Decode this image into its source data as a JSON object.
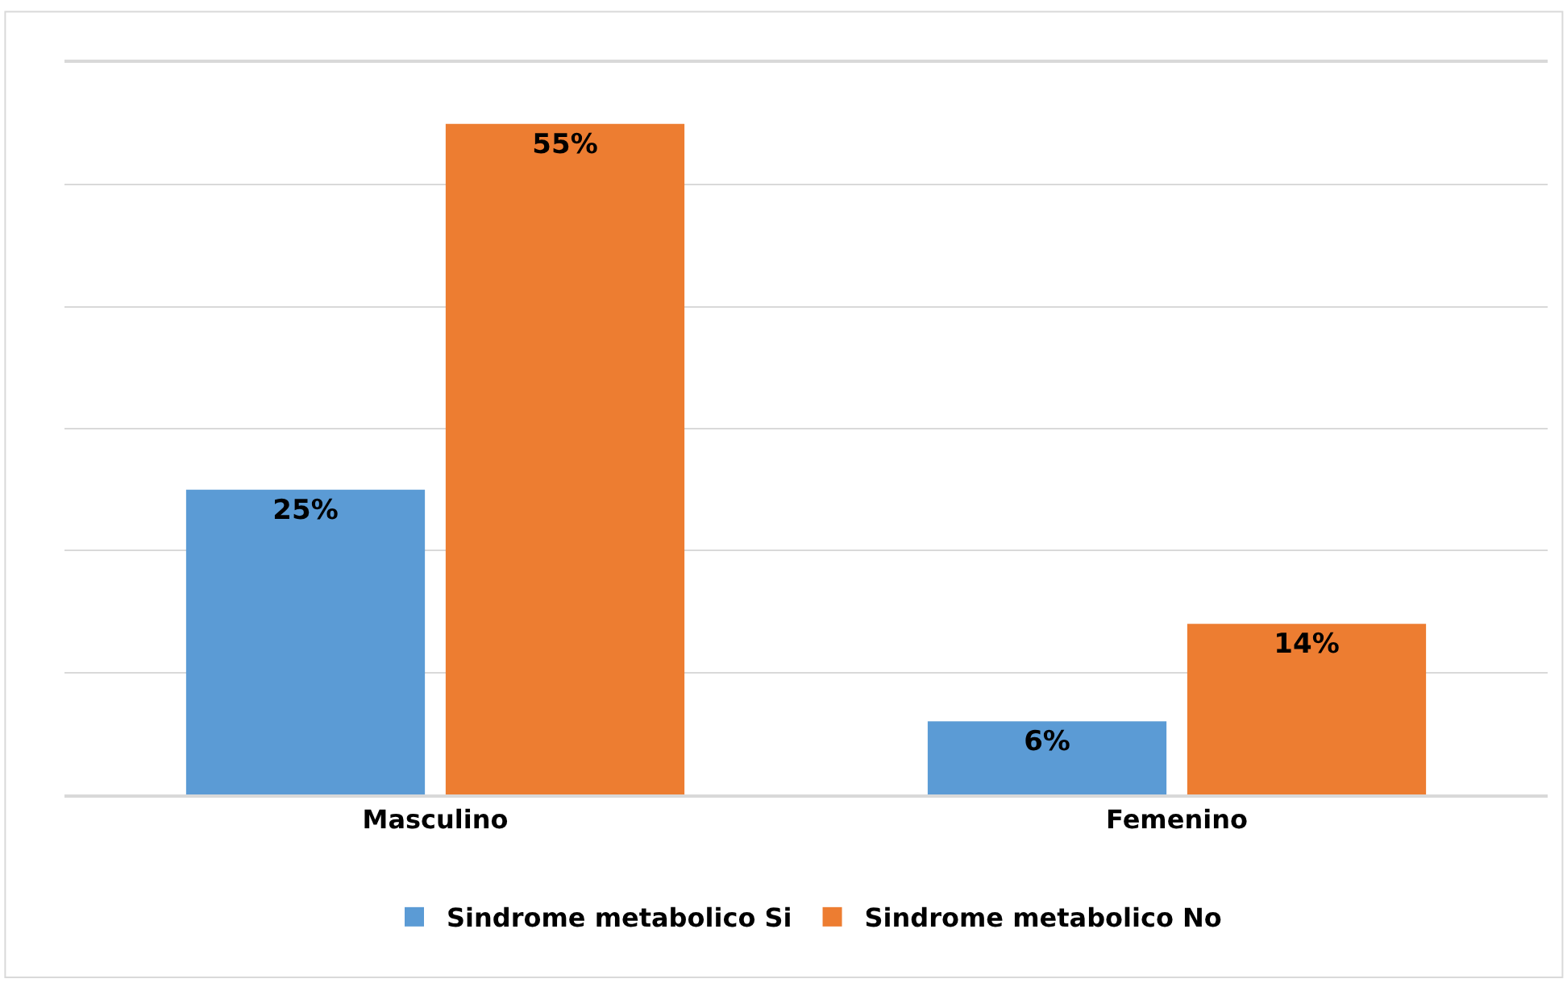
{
  "chart_data": {
    "type": "bar",
    "categories": [
      "Masculino",
      "Femenino"
    ],
    "series": [
      {
        "name": "Sindrome metabolico Si",
        "color": "#5b9bd5",
        "values": [
          25,
          6
        ],
        "value_labels": [
          "25%",
          "6%"
        ]
      },
      {
        "name": "Sindrome metabolico No",
        "color": "#ed7d31",
        "values": [
          55,
          14
        ],
        "value_labels": [
          "55%",
          "14%"
        ]
      }
    ],
    "ylim": [
      0,
      60
    ],
    "yticks": [
      {
        "value": 0,
        "label": null
      },
      {
        "value": 10,
        "label": null
      },
      {
        "value": 20,
        "label": null
      },
      {
        "value": 30,
        "label": null
      },
      {
        "value": 40,
        "label": null
      },
      {
        "value": 50,
        "label": null
      },
      {
        "value": 60,
        "label": null
      }
    ],
    "grid": "y",
    "legend": "bottom",
    "tick_labels": "x"
  }
}
